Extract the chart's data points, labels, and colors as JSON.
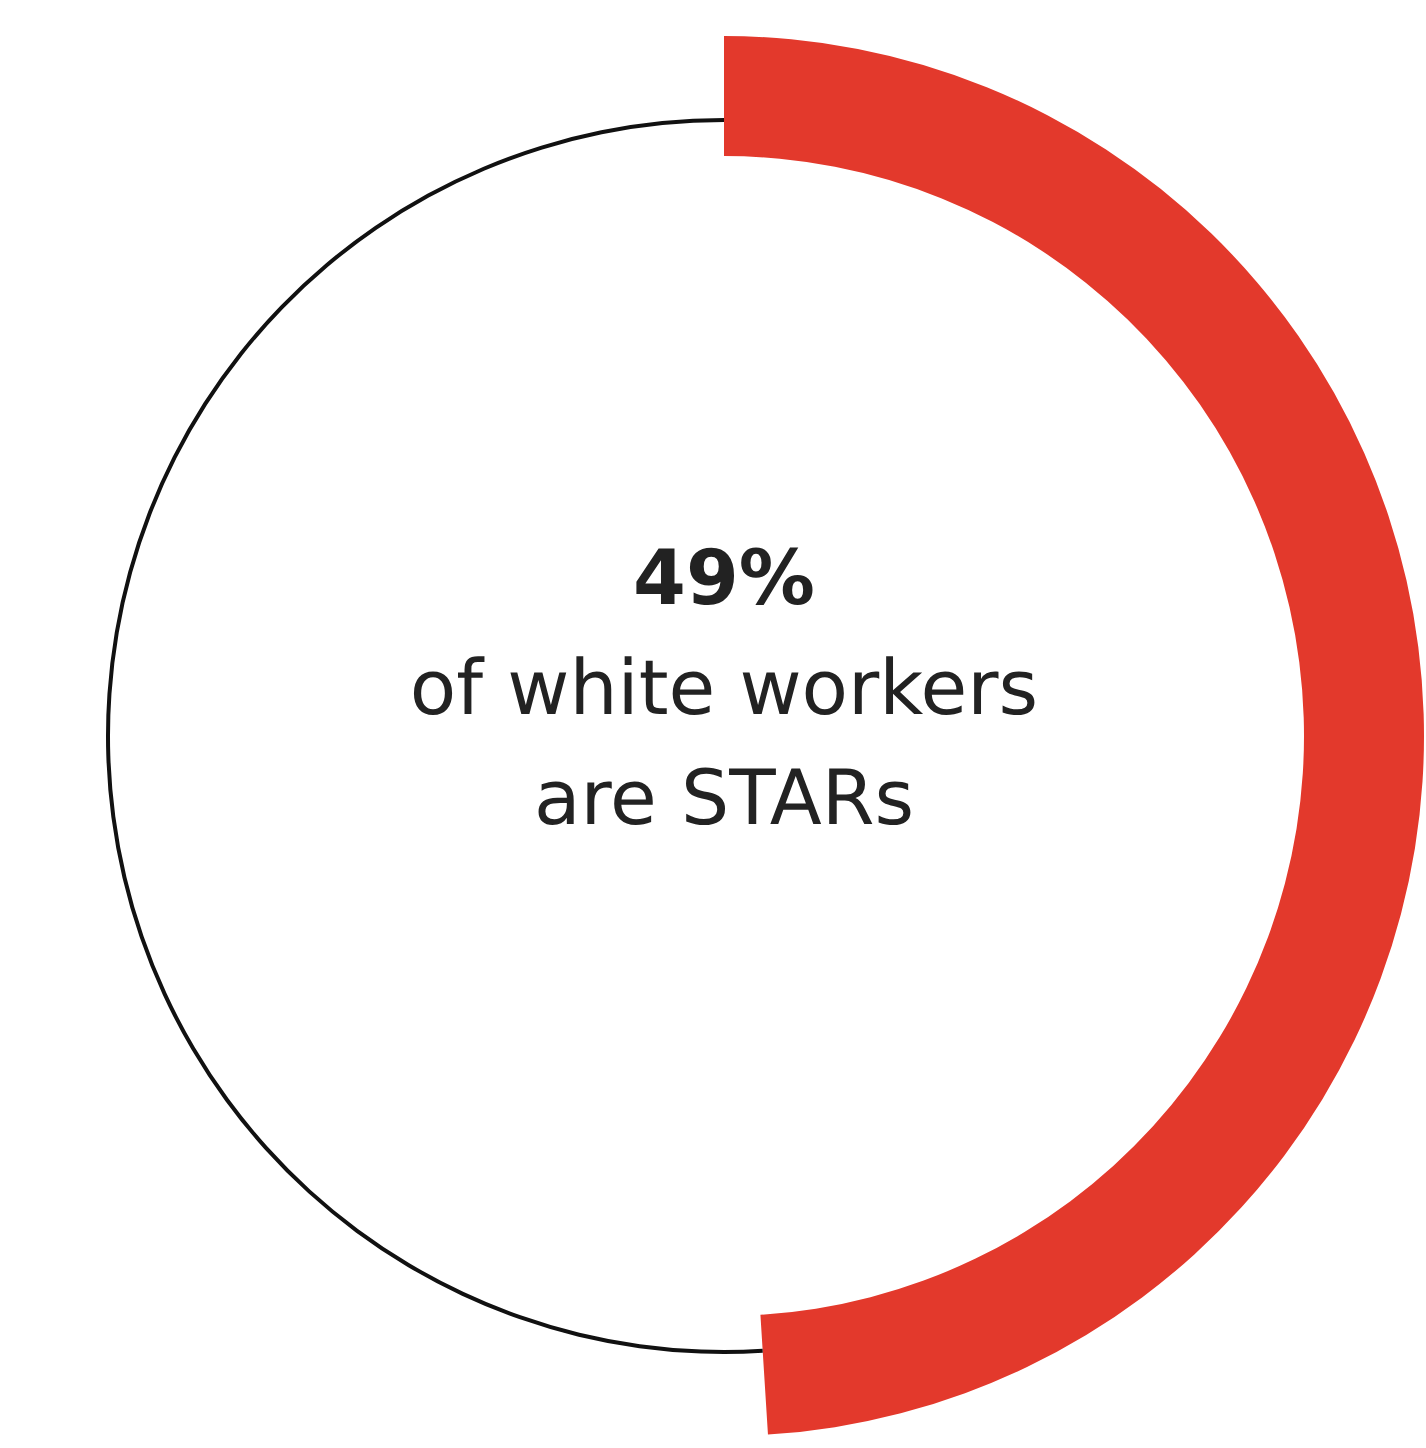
{
  "chart_data": {
    "type": "donut",
    "categories": [
      null,
      null
    ],
    "values": [
      49,
      51
    ],
    "colors": [
      "#e3392c",
      "#111111"
    ],
    "value_labels": [
      "49%",
      null
    ],
    "annotations": [
      "of white workers are STARs"
    ]
  }
}
